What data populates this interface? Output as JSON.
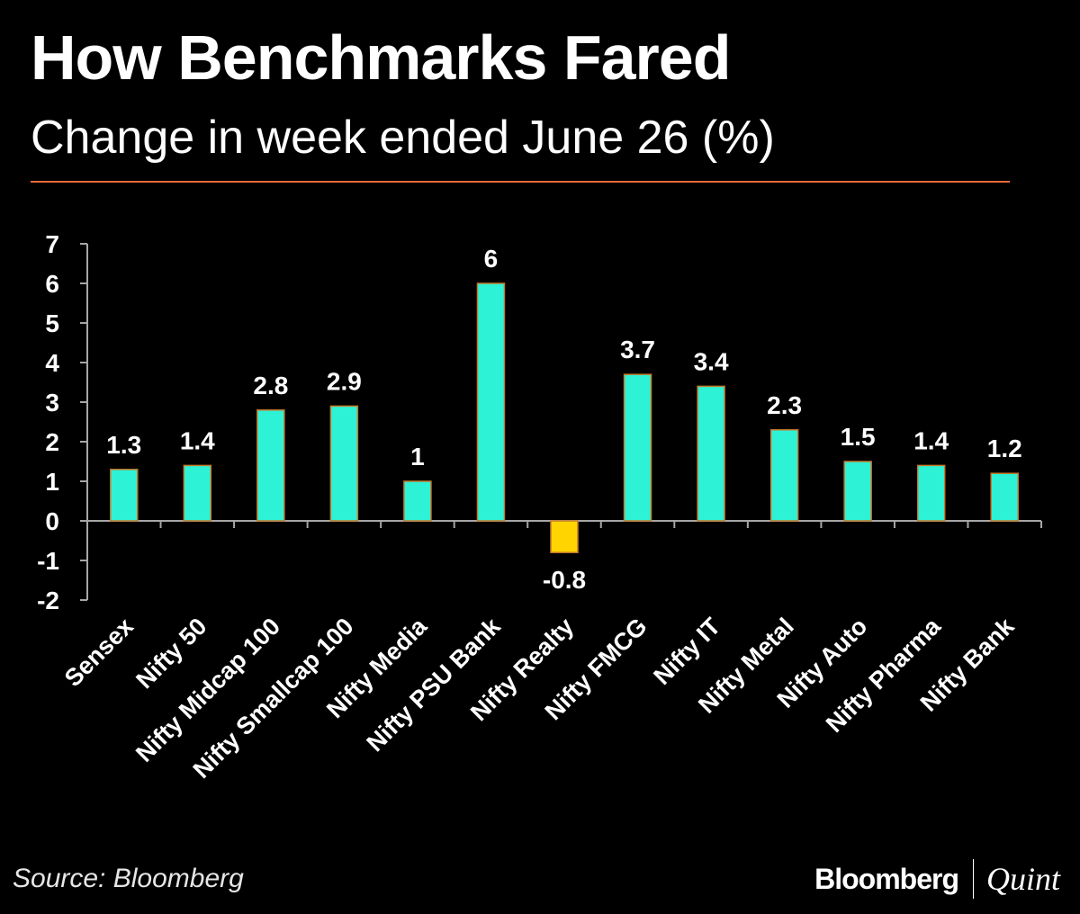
{
  "title": "How Benchmarks Fared",
  "subtitle": "Change in week ended June 26 (%)",
  "source": "Source: Bloomberg",
  "logo": {
    "left": "Bloomberg",
    "right": "Quint"
  },
  "colors": {
    "background": "#000000",
    "rule": "#e8683a",
    "positive_bar": "#2ef2d6",
    "negative_bar": "#ffd400",
    "bar_outline": "#c47a2c",
    "axis": "#a6a6a6",
    "text": "#ffffff"
  },
  "chart_data": {
    "type": "bar",
    "title": "How Benchmarks Fared",
    "subtitle": "Change in week ended June 26 (%)",
    "xlabel": "",
    "ylabel": "",
    "ylim": [
      -2,
      7
    ],
    "yticks": [
      7,
      6,
      5,
      4,
      3,
      2,
      1,
      0,
      -1,
      -2
    ],
    "grid": false,
    "categories": [
      "Sensex",
      "Nifty 50",
      "Nifty Midcap 100",
      "Nifty Smallcap 100",
      "Nifty Media",
      "Nifty PSU Bank",
      "Nifty Realty",
      "Nifty FMCG",
      "Nifty IT",
      "Nifty Metal",
      "Nifty Auto",
      "Nifty Pharma",
      "Nifty Bank"
    ],
    "values": [
      1.3,
      1.4,
      2.8,
      2.9,
      1,
      6,
      -0.8,
      3.7,
      3.4,
      2.3,
      1.5,
      1.4,
      1.2
    ],
    "data_labels": [
      "1.3",
      "1.4",
      "2.8",
      "2.9",
      "1",
      "6",
      "-0.8",
      "3.7",
      "3.4",
      "2.3",
      "1.5",
      "1.4",
      "1.2"
    ]
  }
}
